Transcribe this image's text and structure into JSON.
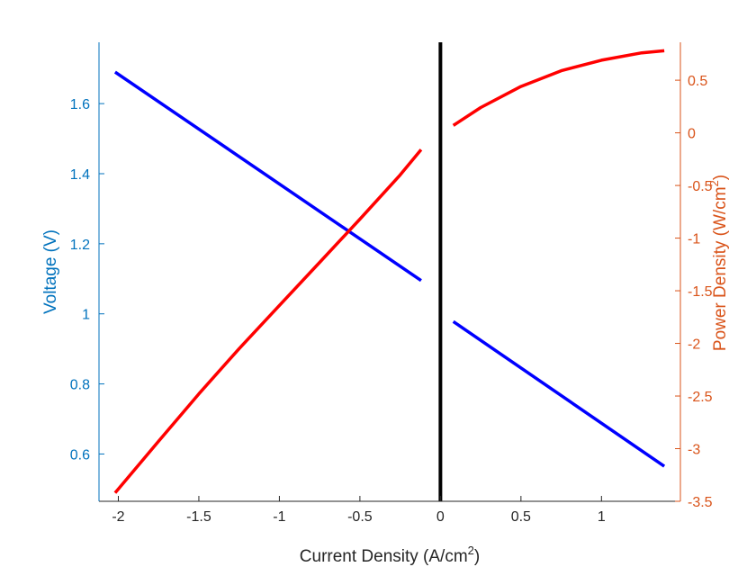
{
  "chart_data": {
    "type": "line",
    "title": "",
    "xlabel": "Current Density (A/cm",
    "xlabel_sup": "2",
    "xlabel_suffix": ")",
    "ylabel_left": "Voltage (V)",
    "ylabel_right": "Power Density (W/cm",
    "ylabel_right_sup": "2",
    "ylabel_right_suffix": ")",
    "xlim": [
      -2.12,
      1.49
    ],
    "ylim_left": [
      0.465,
      1.775
    ],
    "ylim_right": [
      -3.5,
      0.86
    ],
    "xticks": [
      -2,
      -1.5,
      -1,
      -0.5,
      0,
      0.5,
      1
    ],
    "xtick_labels": [
      "-2",
      "-1.5",
      "-1",
      "-0.5",
      "0",
      "0.5",
      "1"
    ],
    "yticks_left": [
      0.6,
      0.8,
      1,
      1.2,
      1.4,
      1.6
    ],
    "ytick_labels_left": [
      "0.6",
      "0.8",
      "1",
      "1.2",
      "1.4",
      "1.6"
    ],
    "yticks_right": [
      -3.5,
      -3,
      -2.5,
      -2,
      -1.5,
      -1,
      -0.5,
      0,
      0.5
    ],
    "ytick_labels_right": [
      "-3.5",
      "-3",
      "-2.5",
      "-2",
      "-1.5",
      "-1",
      "-0.5",
      "0",
      "0.5"
    ],
    "grid": false,
    "colors": {
      "left_axis": "#0072BD",
      "right_axis": "#D95319",
      "voltage": "#0000FF",
      "power": "#FF0000",
      "zero_line": "#000000"
    },
    "series": [
      {
        "axis": "left",
        "color": "#0000FF",
        "x": [
          -2.02,
          -0.12
        ],
        "y": [
          1.69,
          1.095
        ]
      },
      {
        "axis": "left",
        "color": "#0000FF",
        "x": [
          0.08,
          1.39
        ],
        "y": [
          0.978,
          0.565
        ]
      },
      {
        "axis": "right",
        "color": "#FF0000",
        "x": [
          -2.02,
          -1.75,
          -1.5,
          -1.25,
          -1.0,
          -0.75,
          -0.5,
          -0.25,
          -0.12
        ],
        "y": [
          -3.42,
          -2.93,
          -2.48,
          -2.05,
          -1.64,
          -1.23,
          -0.82,
          -0.4,
          -0.16
        ]
      },
      {
        "axis": "right",
        "color": "#FF0000",
        "x": [
          0.08,
          0.25,
          0.5,
          0.75,
          1.0,
          1.25,
          1.39
        ],
        "y": [
          0.07,
          0.24,
          0.44,
          0.59,
          0.69,
          0.76,
          0.78
        ]
      }
    ],
    "vertical_line": {
      "x": 0,
      "color": "#000000"
    }
  }
}
